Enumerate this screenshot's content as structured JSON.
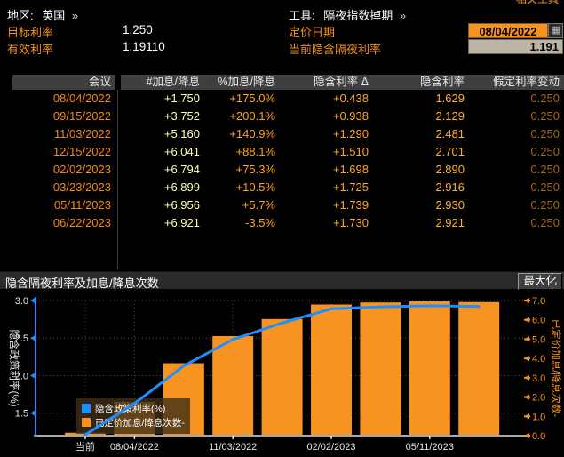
{
  "colors": {
    "accent_orange": "#f79421",
    "line_blue": "#1e8fff",
    "label_amber": "#f5921e",
    "date_text": "#f78711",
    "hikes_text": "#ffffb0",
    "percent_text": "#ffa51e",
    "implied_text": "#ffb42a",
    "assumed_text": "#9c6a14",
    "header_bg": "#3f3f3f",
    "chartbar_bg": "#2b2b2b"
  },
  "topbar": {
    "region_label": "地区:",
    "region_value": "英国",
    "region_arrow": "»",
    "tool_label": "工具:",
    "tool_value": "隔夜指数掉期",
    "tool_arrow": "»",
    "clipped_text": "相关工具",
    "target_rate_label": "目标利率",
    "target_rate_value": "1.250",
    "effective_rate_label": "有效利率",
    "effective_rate_value": "1.19110",
    "pricing_date_label": "定价日期",
    "pricing_date_value": "08/04/2022",
    "calendar_icon_glyph": "▦",
    "current_implied_label": "当前隐含隔夜利率",
    "current_implied_value": "1.191"
  },
  "table": {
    "columns": [
      "会议",
      "#加息/降息",
      "%加息/降息",
      "隐含利率 Δ",
      "隐含利率",
      "假定利率变动"
    ],
    "rows": [
      [
        "08/04/2022",
        "+1.750",
        "+175.0%",
        "+0.438",
        "1.629",
        "0.250"
      ],
      [
        "09/15/2022",
        "+3.752",
        "+200.1%",
        "+0.938",
        "2.129",
        "0.250"
      ],
      [
        "11/03/2022",
        "+5.160",
        "+140.9%",
        "+1.290",
        "2.481",
        "0.250"
      ],
      [
        "12/15/2022",
        "+6.041",
        "+88.1%",
        "+1.510",
        "2.701",
        "0.250"
      ],
      [
        "02/02/2023",
        "+6.794",
        "+75.3%",
        "+1.698",
        "2.890",
        "0.250"
      ],
      [
        "03/23/2023",
        "+6.899",
        "+10.5%",
        "+1.725",
        "2.916",
        "0.250"
      ],
      [
        "05/11/2023",
        "+6.956",
        "+5.7%",
        "+1.739",
        "2.930",
        "0.250"
      ],
      [
        "06/22/2023",
        "+6.921",
        "-3.5%",
        "+1.730",
        "2.921",
        "0.250"
      ]
    ]
  },
  "chart_header": {
    "title": "隐含隔夜利率及加息/降息次数",
    "maximize_label": "最大化"
  },
  "chart_data": {
    "type": "bar+line",
    "title": "隐含隔夜利率及加息/降息次数",
    "categories": [
      "当前",
      "08/04/2022",
      "09/15/2022",
      "11/03/2022",
      "12/15/2022",
      "02/02/2023",
      "03/23/2023",
      "05/11/2023",
      "06/22/2023"
    ],
    "x_tick_indices": [
      0,
      1,
      3,
      5,
      7
    ],
    "x_tick_labels": [
      "当前",
      "08/04/2022",
      "11/03/2022",
      "02/02/2023",
      "05/11/2023"
    ],
    "series": [
      {
        "name": "隐含政策利率(%)",
        "kind": "line",
        "axis": "left",
        "color": "#1e8fff",
        "values": [
          1.191,
          1.629,
          2.129,
          2.481,
          2.701,
          2.89,
          2.916,
          2.93,
          2.921
        ]
      },
      {
        "name": "已定价加息/降息次数-",
        "kind": "bar",
        "axis": "right",
        "color": "#f79421",
        "values": [
          0.15,
          1.75,
          3.752,
          5.16,
          6.041,
          6.794,
          6.899,
          6.956,
          6.921
        ]
      }
    ],
    "left_axis": {
      "label": "隐含政策利率(%)",
      "min": 1.2,
      "max": 3.0,
      "ticks": [
        1.5,
        2.0,
        2.5,
        3.0
      ]
    },
    "right_axis": {
      "label": "已定价加息/降息次数-",
      "min": 0.0,
      "max": 7.0,
      "ticks": [
        0.0,
        1.0,
        2.0,
        3.0,
        4.0,
        5.0,
        6.0,
        7.0
      ]
    },
    "grid": "dotted",
    "legend_position": "inside-bottom-left"
  }
}
